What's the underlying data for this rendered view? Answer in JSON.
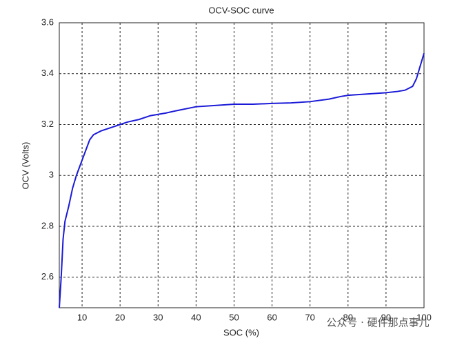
{
  "chart_data": {
    "type": "line",
    "title": "OCV-SOC curve",
    "x_label": "SOC (%)",
    "y_label": "OCV (Volts)",
    "watermark": "公众号 · 硬件那点事儿",
    "xlim": [
      4,
      100
    ],
    "ylim": [
      2.48,
      3.6
    ],
    "xticks": [
      10,
      20,
      30,
      40,
      50,
      60,
      70,
      80,
      90,
      100
    ],
    "yticks": [
      2.6,
      2.8,
      3,
      3.2,
      3.4,
      3.6
    ],
    "grid": true,
    "series": [
      {
        "name": "OCV",
        "color": "#1a1ad8",
        "x": [
          4,
          4.5,
          5,
          5.5,
          6.5,
          7.5,
          8.5,
          10,
          11,
          12,
          13,
          15,
          18,
          20,
          22,
          25,
          28,
          32,
          35,
          40,
          45,
          50,
          55,
          60,
          65,
          70,
          75,
          78,
          80,
          85,
          90,
          93,
          95,
          97,
          98,
          99,
          100
        ],
        "values": [
          2.48,
          2.6,
          2.75,
          2.82,
          2.88,
          2.95,
          3.0,
          3.06,
          3.1,
          3.14,
          3.16,
          3.175,
          3.19,
          3.2,
          3.21,
          3.22,
          3.235,
          3.245,
          3.255,
          3.27,
          3.275,
          3.28,
          3.28,
          3.283,
          3.285,
          3.29,
          3.3,
          3.31,
          3.315,
          3.32,
          3.325,
          3.33,
          3.335,
          3.35,
          3.38,
          3.43,
          3.48
        ]
      }
    ]
  }
}
